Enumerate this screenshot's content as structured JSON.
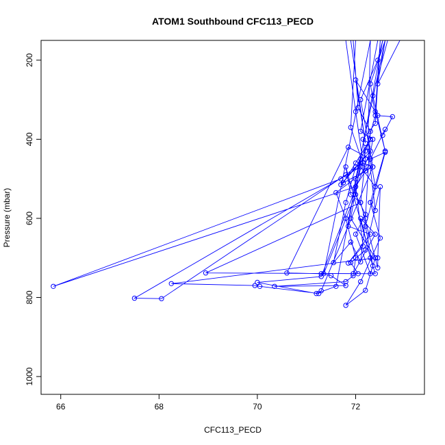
{
  "chart_data": {
    "type": "line",
    "title": "ATOM1 Southbound CFC113_PECD",
    "xlabel": "CFC113_PECD",
    "ylabel": "Pressure (mbar)",
    "xlim": [
      65.6,
      73.4
    ],
    "ylim": [
      1045,
      150
    ],
    "y_reversed": true,
    "xticks": [
      66,
      68,
      70,
      72
    ],
    "yticks": [
      200,
      400,
      600,
      800,
      1000
    ],
    "grid": false,
    "markers": "open-circle",
    "line_color": "#0000ff",
    "series": [
      {
        "points": [
          [
            72.6,
            150
          ],
          [
            72.3,
            260
          ],
          [
            72.4,
            340
          ],
          [
            72.2,
            430
          ],
          [
            72.0,
            520
          ],
          [
            65.85,
            772
          ],
          [
            71.7,
            500
          ],
          [
            72.1,
            460
          ],
          [
            71.9,
            600
          ],
          [
            72.4,
            700
          ],
          [
            72.2,
            782
          ],
          [
            71.8,
            820
          ],
          [
            72.1,
            760
          ],
          [
            72.5,
            650
          ],
          [
            72.3,
            560
          ],
          [
            72.6,
            430
          ],
          [
            72.4,
            330
          ],
          [
            72.5,
            150
          ],
          [
            72.0,
            150
          ],
          [
            71.9,
            370
          ],
          [
            72.2,
            480
          ],
          [
            71.6,
            535
          ],
          [
            71.8,
            600
          ],
          [
            72.0,
            700
          ],
          [
            71.95,
            745
          ],
          [
            71.8,
            760
          ],
          [
            70.35,
            772
          ],
          [
            71.8,
            770
          ],
          [
            71.5,
            745
          ],
          [
            71.3,
            740
          ],
          [
            70.6,
            738
          ],
          [
            71.85,
            420
          ],
          [
            72.3,
            450
          ],
          [
            72.4,
            520
          ],
          [
            72.1,
            470
          ],
          [
            67.5,
            802
          ],
          [
            68.05,
            803
          ],
          [
            71.8,
            490
          ],
          [
            72.2,
            590
          ],
          [
            72.0,
            640
          ],
          [
            72.3,
            740
          ],
          [
            72.4,
            700
          ],
          [
            68.25,
            765
          ],
          [
            69.95,
            770
          ],
          [
            70.05,
            772
          ],
          [
            71.25,
            790
          ],
          [
            71.3,
            783
          ],
          [
            72.35,
            470
          ],
          [
            72.15,
            460
          ],
          [
            72.0,
            330
          ],
          [
            71.8,
            150
          ],
          [
            71.9,
            150
          ],
          [
            72.2,
            410
          ],
          [
            72.0,
            250
          ],
          [
            72.45,
            340
          ],
          [
            72.75,
            343
          ],
          [
            72.55,
            390
          ],
          [
            72.6,
            375
          ],
          [
            72.3,
            450
          ],
          [
            72.6,
            433
          ],
          [
            72.2,
            620
          ],
          [
            72.35,
            720
          ],
          [
            71.8,
            470
          ],
          [
            71.9,
            540
          ],
          [
            72.1,
            560
          ],
          [
            68.95,
            738
          ],
          [
            72.4,
            740
          ],
          [
            72.3,
            700
          ],
          [
            72.1,
            600
          ],
          [
            72.4,
            640
          ],
          [
            71.95,
            740
          ],
          [
            72.05,
            740
          ],
          [
            71.9,
            712
          ],
          [
            72.2,
            680
          ],
          [
            72.5,
            520
          ],
          [
            72.45,
            700
          ],
          [
            72.45,
            725
          ],
          [
            72.1,
            560
          ],
          [
            72.2,
            450
          ],
          [
            72.15,
            400
          ],
          [
            72.4,
            360
          ],
          [
            72.5,
            150
          ],
          [
            72.3,
            150
          ],
          [
            71.35,
            740
          ],
          [
            72.0,
            540
          ],
          [
            72.1,
            450
          ],
          [
            72.3,
            400
          ],
          [
            72.0,
            460
          ],
          [
            71.75,
            510
          ],
          [
            72.35,
            470
          ],
          [
            72.1,
            300
          ],
          [
            72.45,
            200
          ],
          [
            72.55,
            150
          ],
          [
            71.6,
            772
          ],
          [
            71.2,
            790
          ],
          [
            70.0,
            762
          ],
          [
            71.3,
            747
          ],
          [
            72.3,
            430
          ],
          [
            71.7,
            515
          ],
          [
            72.0,
            470
          ],
          [
            71.8,
            560
          ],
          [
            71.55,
            712
          ],
          [
            71.9,
            660
          ],
          [
            72.1,
            710
          ],
          [
            72.2,
            600
          ],
          [
            72.3,
            380
          ],
          [
            72.05,
            320
          ],
          [
            71.95,
            150
          ],
          [
            72.3,
            150
          ],
          [
            72.25,
            420
          ],
          [
            72.4,
            580
          ],
          [
            72.3,
            560
          ],
          [
            72.6,
            430
          ],
          [
            72.35,
            290
          ],
          [
            72.65,
            150
          ],
          [
            72.9,
            150
          ],
          [
            72.45,
            260
          ],
          [
            72.6,
            150
          ],
          [
            72.0,
            500
          ],
          [
            71.85,
            620
          ],
          [
            72.3,
            640
          ],
          [
            71.85,
            713
          ],
          [
            72.15,
            670
          ],
          [
            72.0,
            520
          ],
          [
            72.25,
            470
          ],
          [
            72.35,
            400
          ],
          [
            72.1,
            380
          ],
          [
            72.45,
            150
          ],
          [
            72.1,
            150
          ]
        ]
      }
    ]
  }
}
